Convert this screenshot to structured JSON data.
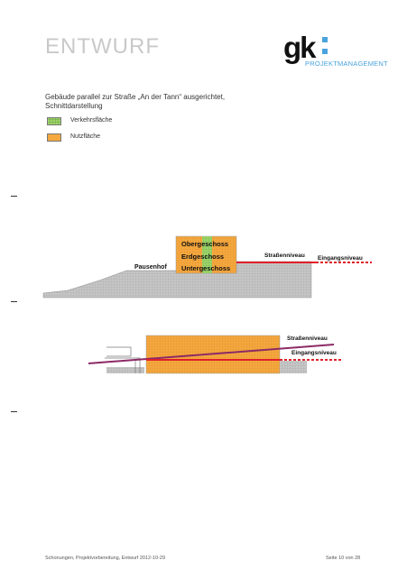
{
  "header": {
    "title": "ENTWURF"
  },
  "logo": {
    "mark": "gk",
    "subtitle": "PROJEKTMANAGEMENT"
  },
  "description": "Gebäude parallel zur Straße „An der Tann“ ausgerichtet, Schnittdarstellung",
  "legend": [
    {
      "label": "Verkehrsfläche",
      "color": "#9bd46a"
    },
    {
      "label": "Nutzfläche",
      "color": "#f5a83e"
    }
  ],
  "section_diagram": {
    "floors": [
      "Obergeschoss",
      "Erdgeschoss",
      "Untergeschoss"
    ],
    "labels": {
      "yard": "Pausenhof",
      "street": "Straßenniveau",
      "entrance": "Eingangsniveau"
    }
  },
  "plan_diagram": {
    "labels": {
      "street": "Straßenniveau",
      "entrance": "Eingangsniveau"
    }
  },
  "footer": {
    "left": "Schonungen, Projektvorbereitung, Entwurf 2012-10-29",
    "right": "Seite 10 von 28"
  },
  "colors": {
    "orange": "#f5a83e",
    "green": "#9bd46a",
    "red": "#e0202a",
    "purple": "#8c2a66",
    "accent": "#4aa3dd"
  }
}
